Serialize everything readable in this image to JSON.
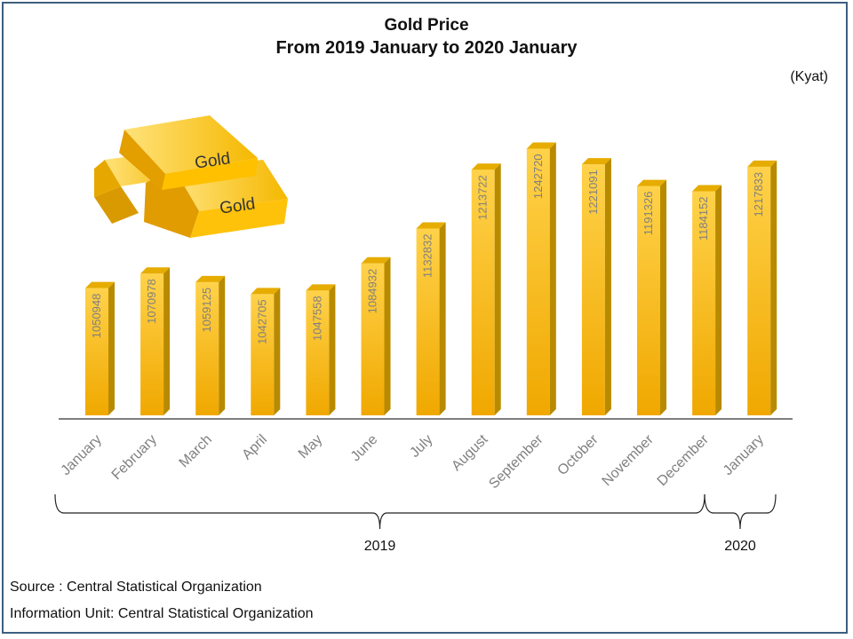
{
  "chart_data": {
    "type": "bar",
    "title": "Gold Price",
    "subtitle": "From 2019 January to 2020 January",
    "unit": "(Kyat)",
    "categories": [
      "January",
      "February",
      "March",
      "April",
      "May",
      "June",
      "July",
      "August",
      "September",
      "October",
      "November",
      "December",
      "January"
    ],
    "values": [
      1050948,
      1070978,
      1059125,
      1042705,
      1047558,
      1084932,
      1132832,
      1213722,
      1242720,
      1221091,
      1191326,
      1184152,
      1217833
    ],
    "year_groups": [
      {
        "label": "2019",
        "from": 0,
        "to": 11
      },
      {
        "label": "2020",
        "from": 12,
        "to": 12
      }
    ],
    "ylim": [
      876000,
      1264000
    ],
    "colors": {
      "bar_front": "#ffc000",
      "bar_side": "#b88a00",
      "bar_top": "#e6ac00",
      "value_label": "#808080",
      "axis_label": "#808080"
    }
  },
  "illustration": {
    "bar_text": "Gold"
  },
  "source_line": "Source :  Central Statistical Organization",
  "info_line": "Information Unit:  Central Statistical Organization"
}
